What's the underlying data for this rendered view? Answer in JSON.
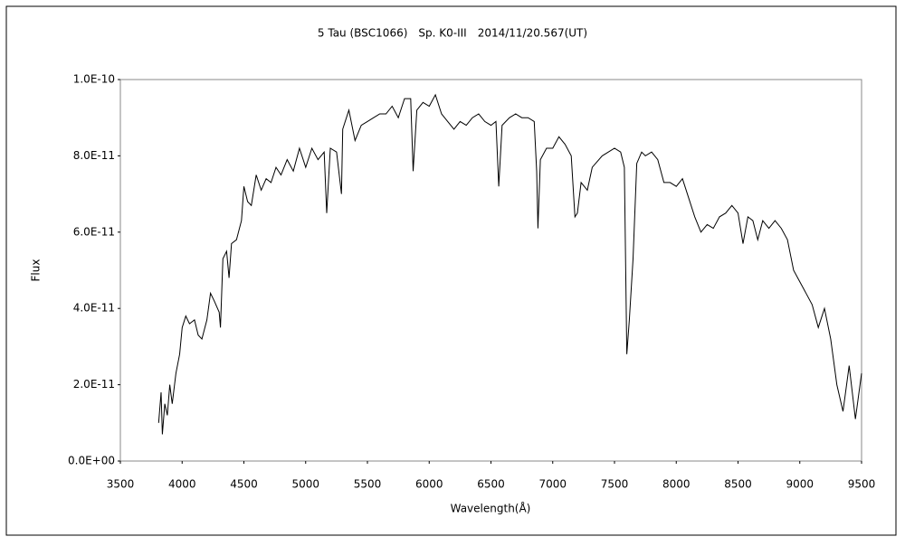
{
  "chart_data": {
    "type": "line",
    "title": "5 Tau (BSC1066)　Sp. K0-III　2014/11/20.567(UT)",
    "x_label": "Wavelength(Å)",
    "y_label": "Flux",
    "color": "#000000",
    "xlim": [
      3500,
      9500
    ],
    "xticks": [
      3500,
      4000,
      4500,
      5000,
      5500,
      6000,
      6500,
      7000,
      7500,
      8000,
      8500,
      9000,
      9500
    ],
    "ylim": [
      0,
      1e-10
    ],
    "yticks": [
      {
        "value": 0,
        "label": "0.0E+00"
      },
      {
        "value": 2e-11,
        "label": "2.0E-11"
      },
      {
        "value": 4e-11,
        "label": "4.0E-11"
      },
      {
        "value": 6e-11,
        "label": "6.0E-11"
      },
      {
        "value": 8e-11,
        "label": "8.0E-11"
      },
      {
        "value": 1e-10,
        "label": "1.0E-10"
      }
    ],
    "x": [
      3810,
      3830,
      3840,
      3860,
      3880,
      3900,
      3920,
      3950,
      3980,
      4000,
      4030,
      4060,
      4100,
      4130,
      4160,
      4200,
      4230,
      4260,
      4300,
      4310,
      4330,
      4360,
      4380,
      4400,
      4440,
      4480,
      4500,
      4530,
      4560,
      4600,
      4640,
      4680,
      4720,
      4760,
      4800,
      4850,
      4900,
      4950,
      5000,
      5050,
      5100,
      5150,
      5170,
      5200,
      5250,
      5290,
      5300,
      5350,
      5400,
      5450,
      5500,
      5550,
      5600,
      5650,
      5700,
      5750,
      5800,
      5850,
      5870,
      5900,
      5950,
      6000,
      6050,
      6100,
      6150,
      6200,
      6250,
      6300,
      6350,
      6400,
      6450,
      6500,
      6540,
      6563,
      6590,
      6650,
      6700,
      6750,
      6800,
      6850,
      6870,
      6880,
      6900,
      6950,
      7000,
      7050,
      7100,
      7150,
      7180,
      7200,
      7230,
      7280,
      7320,
      7400,
      7450,
      7500,
      7550,
      7580,
      7600,
      7620,
      7650,
      7680,
      7720,
      7750,
      7800,
      7850,
      7900,
      7950,
      8000,
      8050,
      8100,
      8150,
      8200,
      8250,
      8300,
      8350,
      8400,
      8450,
      8500,
      8540,
      8580,
      8620,
      8660,
      8700,
      8750,
      8800,
      8850,
      8900,
      8950,
      9000,
      9050,
      9100,
      9150,
      9200,
      9250,
      9300,
      9350,
      9400,
      9450,
      9500
    ],
    "values": [
      1e-11,
      1.8e-11,
      7e-12,
      1.5e-11,
      1.2e-11,
      2e-11,
      1.5e-11,
      2.3e-11,
      2.8e-11,
      3.5e-11,
      3.8e-11,
      3.6e-11,
      3.7e-11,
      3.3e-11,
      3.2e-11,
      3.7e-11,
      4.4e-11,
      4.2e-11,
      3.9e-11,
      3.5e-11,
      5.3e-11,
      5.5e-11,
      4.8e-11,
      5.7e-11,
      5.8e-11,
      6.3e-11,
      7.2e-11,
      6.8e-11,
      6.7e-11,
      7.5e-11,
      7.1e-11,
      7.4e-11,
      7.3e-11,
      7.7e-11,
      7.5e-11,
      7.9e-11,
      7.6e-11,
      8.2e-11,
      7.7e-11,
      8.2e-11,
      7.9e-11,
      8.1e-11,
      6.5e-11,
      8.2e-11,
      8.1e-11,
      7e-11,
      8.7e-11,
      9.2e-11,
      8.4e-11,
      8.8e-11,
      8.9e-11,
      9e-11,
      9.1e-11,
      9.1e-11,
      9.3e-11,
      9e-11,
      9.5e-11,
      9.5e-11,
      7.6e-11,
      9.2e-11,
      9.4e-11,
      9.3e-11,
      9.6e-11,
      9.1e-11,
      8.9e-11,
      8.7e-11,
      8.9e-11,
      8.8e-11,
      9e-11,
      9.1e-11,
      8.9e-11,
      8.8e-11,
      8.9e-11,
      7.2e-11,
      8.8e-11,
      9e-11,
      9.1e-11,
      9e-11,
      9e-11,
      8.9e-11,
      7.6e-11,
      6.1e-11,
      7.9e-11,
      8.2e-11,
      8.2e-11,
      8.5e-11,
      8.3e-11,
      8e-11,
      6.4e-11,
      6.5e-11,
      7.3e-11,
      7.1e-11,
      7.7e-11,
      8e-11,
      8.1e-11,
      8.2e-11,
      8.1e-11,
      7.7e-11,
      2.8e-11,
      3.7e-11,
      5.3e-11,
      7.8e-11,
      8.1e-11,
      8e-11,
      8.1e-11,
      7.9e-11,
      7.3e-11,
      7.3e-11,
      7.2e-11,
      7.4e-11,
      6.9e-11,
      6.4e-11,
      6e-11,
      6.2e-11,
      6.1e-11,
      6.4e-11,
      6.5e-11,
      6.7e-11,
      6.5e-11,
      5.7e-11,
      6.4e-11,
      6.3e-11,
      5.8e-11,
      6.3e-11,
      6.1e-11,
      6.3e-11,
      6.1e-11,
      5.8e-11,
      5e-11,
      4.7e-11,
      4.4e-11,
      4.1e-11,
      3.5e-11,
      4e-11,
      3.2e-11,
      2e-11,
      1.3e-11,
      2.5e-11,
      1.1e-11,
      2.3e-11
    ]
  }
}
